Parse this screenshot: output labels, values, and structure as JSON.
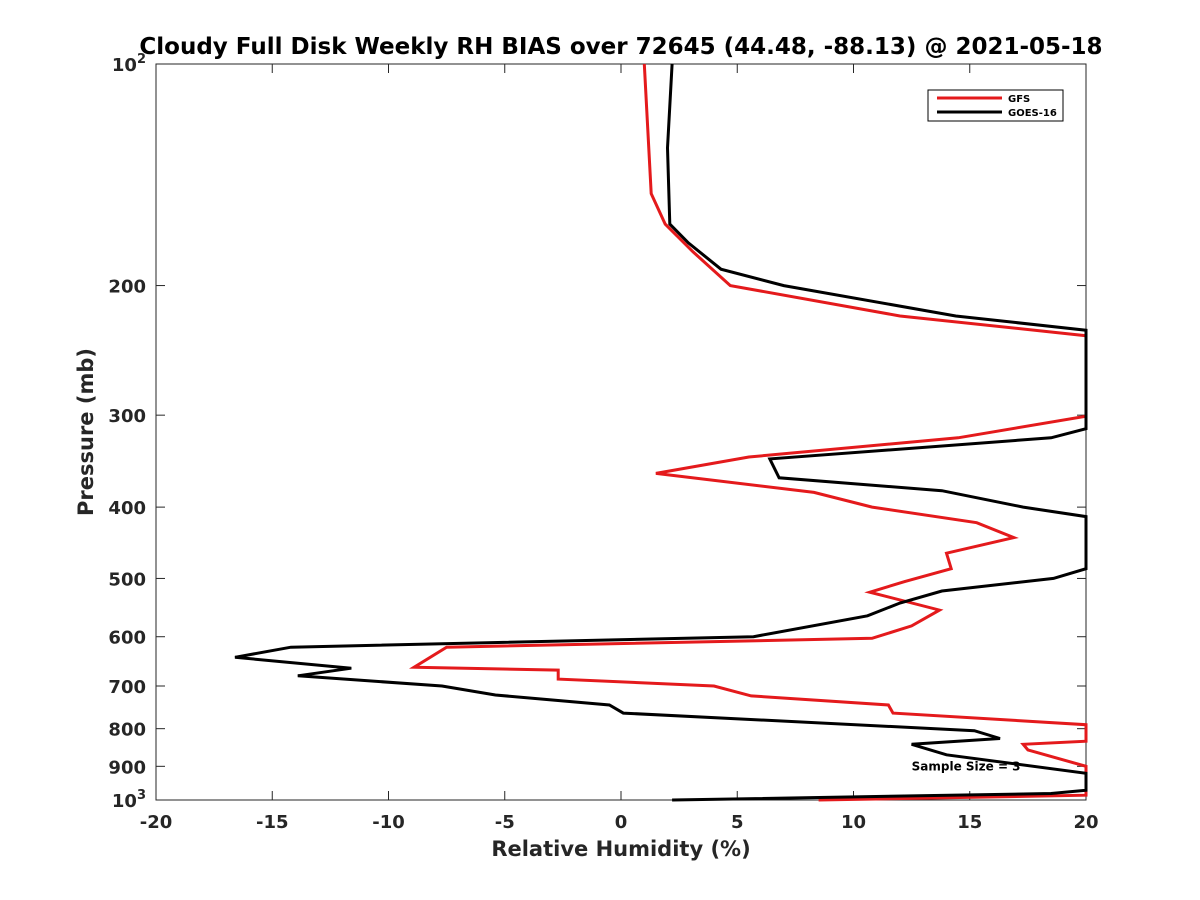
{
  "chart_data": {
    "type": "line",
    "title": "Cloudy Full Disk Weekly RH BIAS over 72645 (44.48, -88.13) @ 2021-05-18",
    "xlabel": "Relative Humidity (%)",
    "ylabel": "Pressure (mb)",
    "xlim": [
      -20,
      20
    ],
    "ylim": [
      100,
      1000
    ],
    "y_scale": "log",
    "y_reversed": true,
    "grid": false,
    "legend_position": "top-right",
    "x_ticks": [
      "-20",
      "-15",
      "-10",
      "-5",
      "0",
      "5",
      "10",
      "15",
      "20"
    ],
    "y_ticks": [
      {
        "value": 100,
        "base": "10",
        "exp": "2"
      },
      {
        "value": 200,
        "label": "200"
      },
      {
        "value": 300,
        "label": "300"
      },
      {
        "value": 400,
        "label": "400"
      },
      {
        "value": 500,
        "label": "500"
      },
      {
        "value": 600,
        "label": "600"
      },
      {
        "value": 700,
        "label": "700"
      },
      {
        "value": 800,
        "label": "800"
      },
      {
        "value": 900,
        "label": "900"
      },
      {
        "value": 1000,
        "base": "10",
        "exp": "3"
      }
    ],
    "series": [
      {
        "name": "GFS",
        "color": "#e41a1c",
        "points": [
          [
            1.0,
            100
          ],
          [
            1.3,
            150
          ],
          [
            1.9,
            165
          ],
          [
            3.1,
            180
          ],
          [
            4.7,
            200
          ],
          [
            12,
            220
          ],
          [
            20,
            234
          ],
          [
            20,
            301
          ],
          [
            14.5,
            322
          ],
          [
            5.5,
            342
          ],
          [
            1.5,
            360
          ],
          [
            8.3,
            382
          ],
          [
            10.8,
            400
          ],
          [
            15.3,
            420
          ],
          [
            16.9,
            440
          ],
          [
            14,
            462
          ],
          [
            14.2,
            485
          ],
          [
            12.2,
            505
          ],
          [
            10.7,
            522
          ],
          [
            13.7,
            552
          ],
          [
            12.5,
            580
          ],
          [
            10.8,
            603
          ],
          [
            -7.5,
            620
          ],
          [
            -8.9,
            660
          ],
          [
            -2.7,
            666
          ],
          [
            -2.7,
            685
          ],
          [
            4,
            700
          ],
          [
            5.6,
            722
          ],
          [
            11.5,
            743
          ],
          [
            11.7,
            762
          ],
          [
            20,
            790
          ],
          [
            20,
            832
          ],
          [
            17.3,
            840
          ],
          [
            17.5,
            855
          ],
          [
            20,
            900
          ],
          [
            20,
            985
          ],
          [
            8.5,
            1000
          ]
        ]
      },
      {
        "name": "GOES-16",
        "color": "#000000",
        "points": [
          [
            2.2,
            100
          ],
          [
            2.0,
            130
          ],
          [
            2.1,
            165
          ],
          [
            2.9,
            175
          ],
          [
            4.3,
            190
          ],
          [
            7,
            200
          ],
          [
            14.4,
            220
          ],
          [
            20,
            230
          ],
          [
            20,
            313
          ],
          [
            18.5,
            322
          ],
          [
            6.4,
            344
          ],
          [
            6.8,
            365
          ],
          [
            13.8,
            380
          ],
          [
            17.3,
            400
          ],
          [
            20,
            412
          ],
          [
            20,
            485
          ],
          [
            18.6,
            500
          ],
          [
            13.8,
            520
          ],
          [
            12.0,
            540
          ],
          [
            10.6,
            562
          ],
          [
            5.7,
            600
          ],
          [
            -14.2,
            620
          ],
          [
            -16.6,
            640
          ],
          [
            -11.6,
            662
          ],
          [
            -13.9,
            678
          ],
          [
            -7.7,
            700
          ],
          [
            -5.4,
            720
          ],
          [
            -0.5,
            743
          ],
          [
            0.1,
            762
          ],
          [
            15.2,
            805
          ],
          [
            16.3,
            825
          ],
          [
            12.5,
            840
          ],
          [
            14,
            868
          ],
          [
            20,
            920
          ],
          [
            20,
            970
          ],
          [
            18.5,
            980
          ],
          [
            2.2,
            1000
          ]
        ]
      }
    ],
    "annotations": [
      {
        "text": "Sample Size = 3",
        "x": 12.5,
        "y": 900
      }
    ]
  }
}
